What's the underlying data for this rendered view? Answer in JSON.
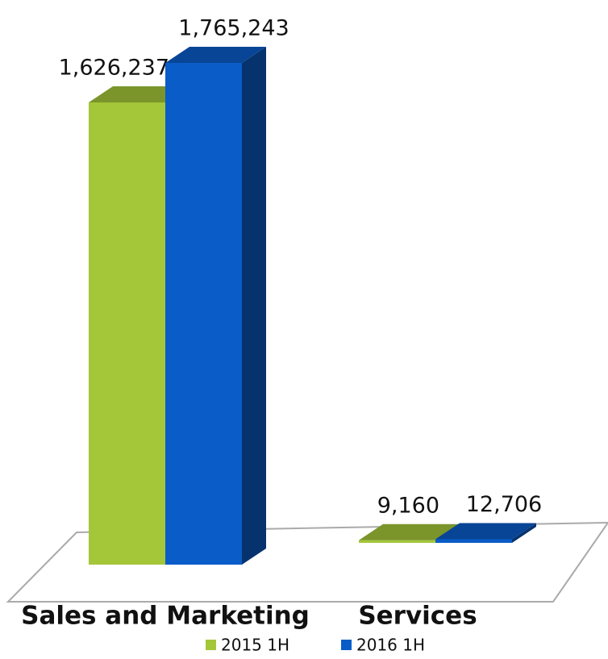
{
  "chart_data": {
    "type": "bar3d",
    "categories": [
      "Sales and Marketing",
      "Services"
    ],
    "series": [
      {
        "name": "2015 1H",
        "color": "#a4c639",
        "values": [
          1626237,
          9160
        ],
        "value_labels": [
          "1,626,237",
          "9,160"
        ]
      },
      {
        "name": "2016 1H",
        "color": "#0a5cc8",
        "values": [
          1765243,
          12706
        ],
        "value_labels": [
          "1,765,243",
          "12,706"
        ]
      }
    ]
  }
}
